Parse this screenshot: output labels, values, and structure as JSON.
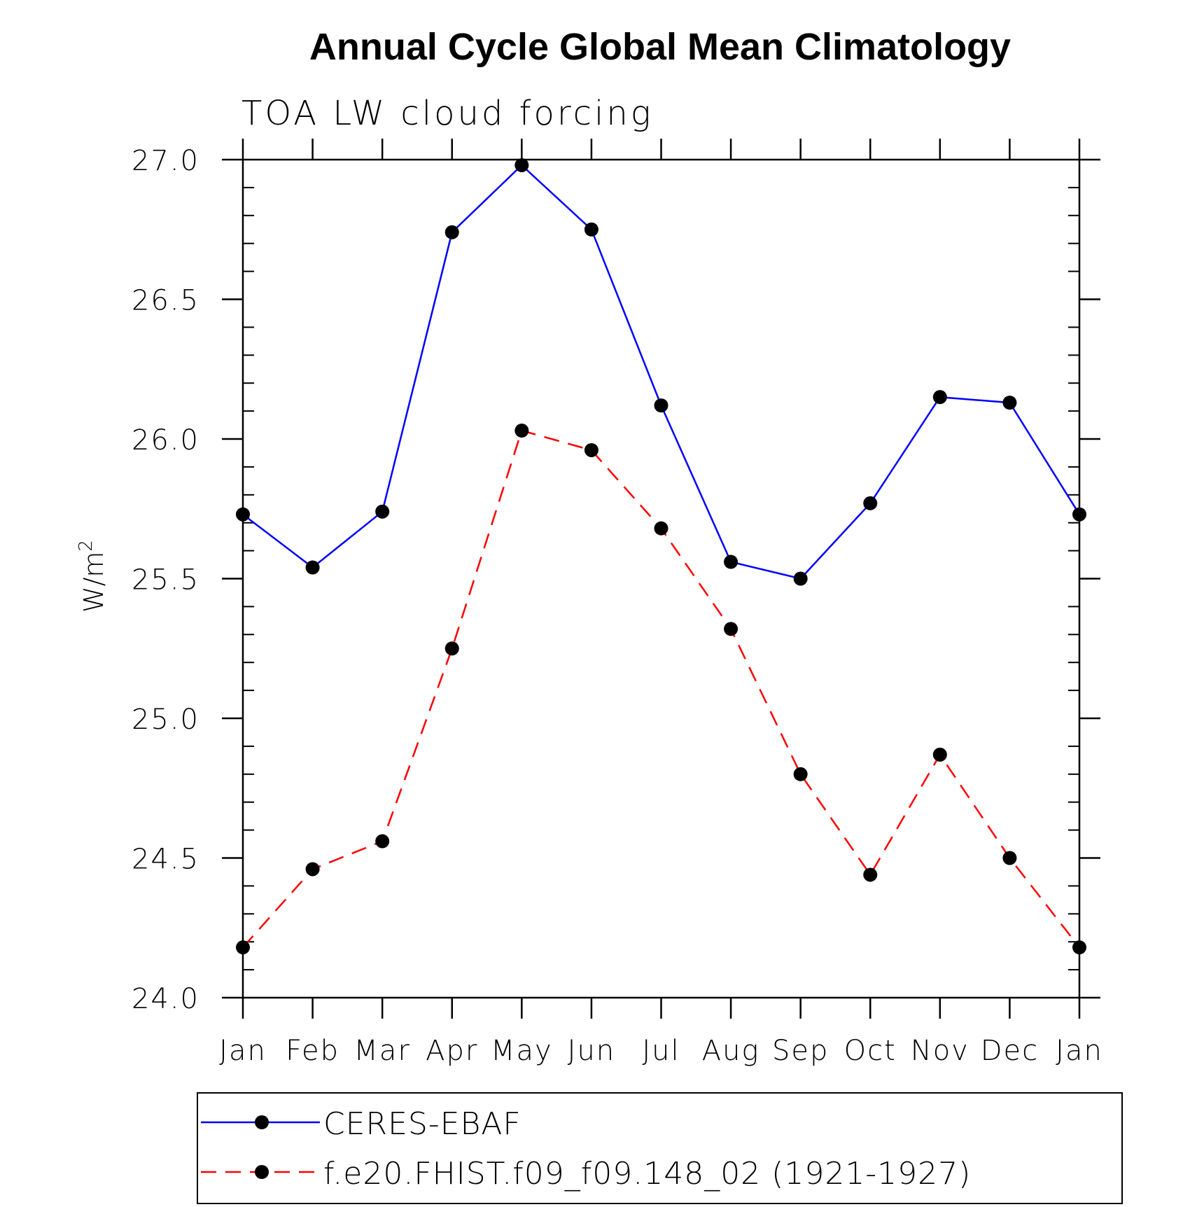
{
  "chart_data": {
    "type": "line",
    "title": "Annual Cycle Global Mean Climatology",
    "subtitle": "TOA LW cloud forcing",
    "ylabel": "W/m",
    "ylabel_superscript": "2",
    "categories": [
      "Jan",
      "Feb",
      "Mar",
      "Apr",
      "May",
      "Jun",
      "Jul",
      "Aug",
      "Sep",
      "Oct",
      "Nov",
      "Dec",
      "Jan"
    ],
    "ylim": [
      24.0,
      27.0
    ],
    "yticks": [
      "24.0",
      "24.5",
      "25.0",
      "25.5",
      "26.0",
      "26.5",
      "27.0"
    ],
    "legend_position": "bottom",
    "series": [
      {
        "name": "CERES-EBAF",
        "color": "#0000ff",
        "dash": "solid",
        "values": [
          25.73,
          25.54,
          25.74,
          26.74,
          26.98,
          26.75,
          26.12,
          25.56,
          25.5,
          25.77,
          26.15,
          26.13,
          25.73
        ]
      },
      {
        "name": "f.e20.FHIST.f09_f09.148_02 (1921-1927)",
        "color": "#ff0000",
        "dash": "dashed",
        "values": [
          24.18,
          24.46,
          24.56,
          25.25,
          26.03,
          25.96,
          25.68,
          25.32,
          24.8,
          24.44,
          24.87,
          24.5,
          24.18
        ]
      }
    ]
  }
}
